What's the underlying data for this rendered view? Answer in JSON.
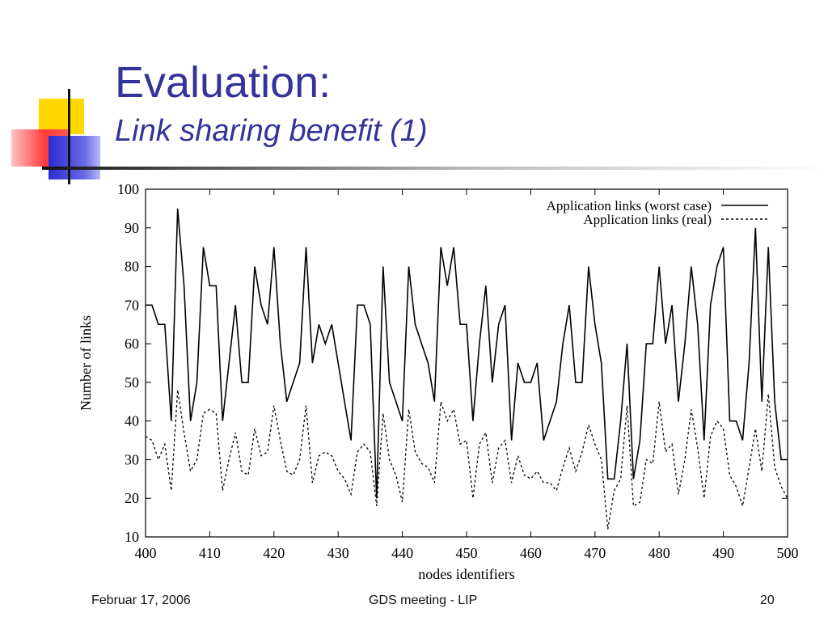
{
  "slide": {
    "title": "Evaluation:",
    "subtitle": "Link sharing benefit (1)",
    "footer": {
      "date": "Februar 17, 2006",
      "center": "GDS meeting - LIP",
      "page": "20"
    }
  },
  "chart_data": {
    "type": "line",
    "xlabel": "nodes identifiers",
    "ylabel": "Number of links",
    "xlim": [
      400,
      500
    ],
    "ylim": [
      10,
      100
    ],
    "xticks": [
      400,
      410,
      420,
      430,
      440,
      450,
      460,
      470,
      480,
      490,
      500
    ],
    "yticks": [
      10,
      20,
      30,
      40,
      50,
      60,
      70,
      80,
      90,
      100
    ],
    "grid": false,
    "legend_position": "top-right",
    "x": [
      400,
      401,
      402,
      403,
      404,
      405,
      406,
      407,
      408,
      409,
      410,
      411,
      412,
      413,
      414,
      415,
      416,
      417,
      418,
      419,
      420,
      421,
      422,
      423,
      424,
      425,
      426,
      427,
      428,
      429,
      430,
      431,
      432,
      433,
      434,
      435,
      436,
      437,
      438,
      439,
      440,
      441,
      442,
      443,
      444,
      445,
      446,
      447,
      448,
      449,
      450,
      451,
      452,
      453,
      454,
      455,
      456,
      457,
      458,
      459,
      460,
      461,
      462,
      463,
      464,
      465,
      466,
      467,
      468,
      469,
      470,
      471,
      472,
      473,
      474,
      475,
      476,
      477,
      478,
      479,
      480,
      481,
      482,
      483,
      484,
      485,
      486,
      487,
      488,
      489,
      490,
      491,
      492,
      493,
      494,
      495,
      496,
      497,
      498,
      499,
      500
    ],
    "series": [
      {
        "name": "Application links (worst case)",
        "style": "solid",
        "values": [
          70,
          70,
          65,
          65,
          40,
          95,
          75,
          40,
          50,
          85,
          75,
          75,
          40,
          55,
          70,
          50,
          50,
          80,
          70,
          65,
          85,
          60,
          45,
          50,
          55,
          85,
          55,
          65,
          60,
          65,
          55,
          45,
          35,
          70,
          70,
          65,
          20,
          80,
          50,
          45,
          40,
          80,
          65,
          60,
          55,
          45,
          85,
          75,
          85,
          65,
          65,
          40,
          60,
          75,
          50,
          65,
          70,
          35,
          55,
          50,
          50,
          55,
          35,
          40,
          45,
          60,
          70,
          50,
          50,
          80,
          65,
          55,
          25,
          25,
          40,
          60,
          25,
          35,
          60,
          60,
          80,
          60,
          70,
          45,
          60,
          80,
          65,
          35,
          70,
          80,
          85,
          40,
          40,
          35,
          55,
          90,
          45,
          85,
          45,
          30,
          30
        ]
      },
      {
        "name": "Application links (real)",
        "style": "dashed",
        "values": [
          36,
          35,
          30,
          34,
          22,
          48,
          37,
          27,
          30,
          42,
          43,
          42,
          22,
          30,
          37,
          27,
          26,
          38,
          31,
          32,
          44,
          35,
          27,
          26,
          30,
          44,
          24,
          31,
          32,
          31,
          27,
          25,
          21,
          32,
          34,
          32,
          18,
          42,
          30,
          26,
          19,
          43,
          32,
          29,
          28,
          24,
          45,
          40,
          43,
          34,
          35,
          20,
          34,
          37,
          24,
          33,
          35,
          24,
          31,
          26,
          25,
          27,
          24,
          24,
          22,
          28,
          33,
          27,
          32,
          39,
          34,
          30,
          12,
          22,
          25,
          44,
          18,
          19,
          30,
          29,
          45,
          32,
          34,
          21,
          30,
          43,
          33,
          20,
          36,
          40,
          38,
          26,
          23,
          18,
          28,
          38,
          27,
          47,
          28,
          23,
          20
        ]
      }
    ]
  }
}
